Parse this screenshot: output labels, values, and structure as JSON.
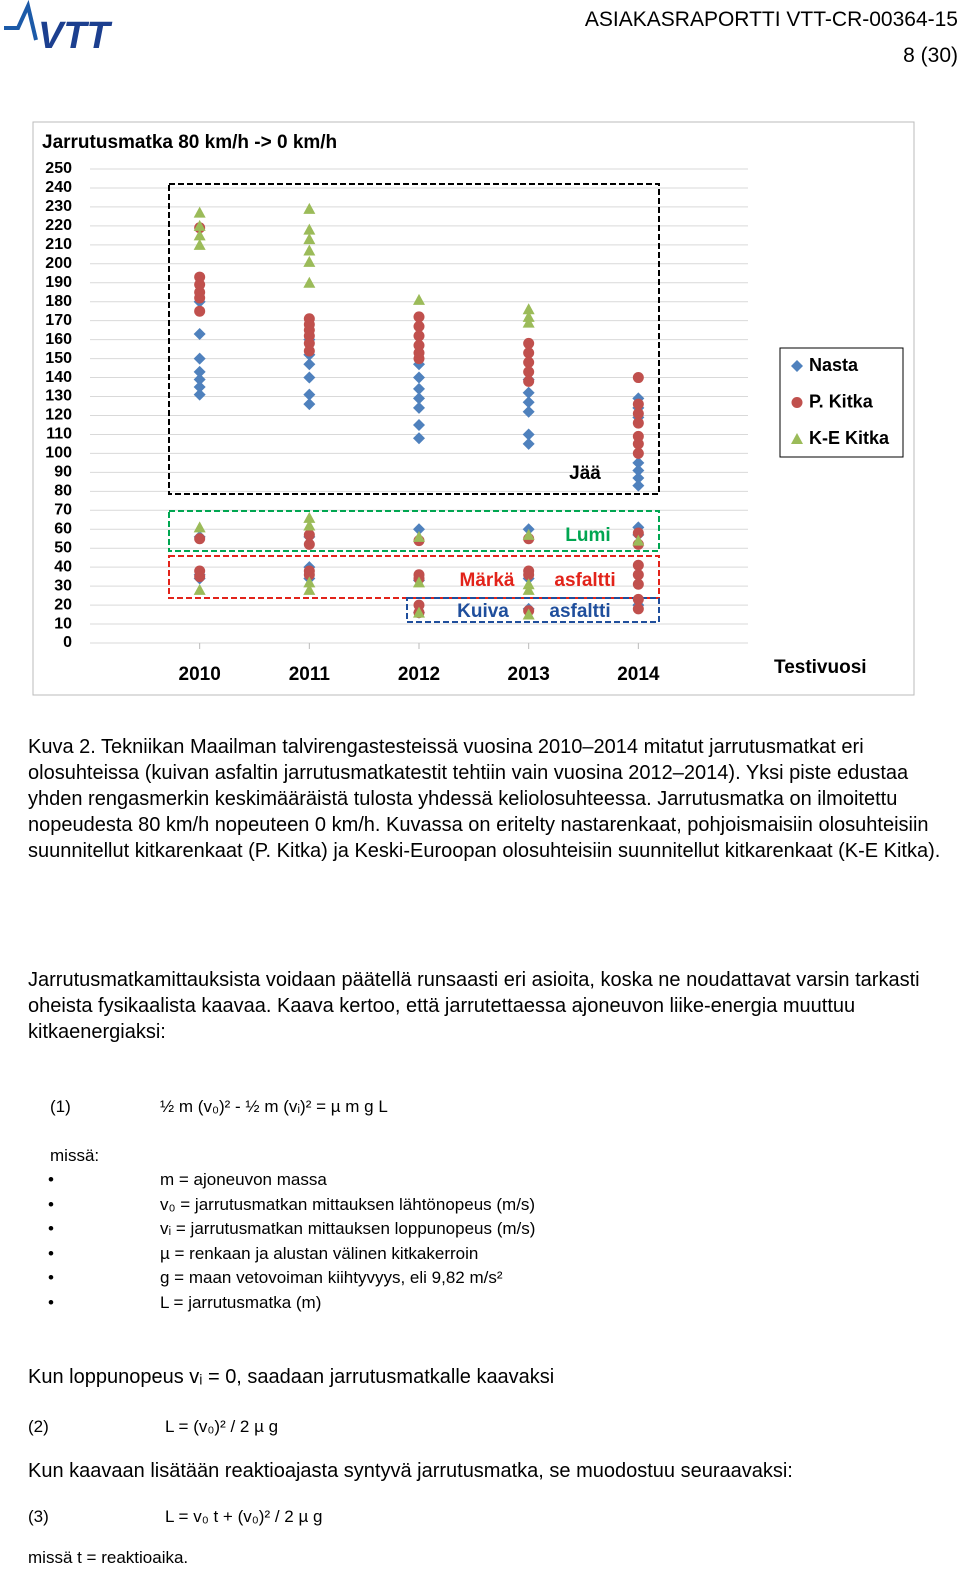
{
  "header": {
    "logo": "VTT",
    "report": "ASIAKASRAPORTTI VTT-CR-00364-15",
    "page": "8 (30)"
  },
  "chart_data": {
    "type": "scatter",
    "title": "Jarrutusmatka 80 km/h -> 0 km/h",
    "x_label": "Testivuosi",
    "xlim": [
      2009,
      2015
    ],
    "xticks": [
      2010,
      2011,
      2012,
      2013,
      2014
    ],
    "ylim": [
      0,
      250
    ],
    "yticks": [
      0,
      10,
      20,
      30,
      40,
      50,
      60,
      70,
      80,
      90,
      100,
      110,
      120,
      130,
      140,
      150,
      160,
      170,
      180,
      190,
      200,
      210,
      220,
      230,
      240,
      250
    ],
    "grid": true,
    "legend": "right",
    "annotations": [
      "Jää",
      "Lumi",
      "Märkä",
      "asfaltti",
      "Kuiva",
      "asfaltti"
    ],
    "series": [
      {
        "name": "Nasta",
        "color": "#4f81bd",
        "marker": "diamond",
        "x": [
          2010,
          2010,
          2010,
          2010,
          2010,
          2010,
          2010,
          2010,
          2010,
          2010,
          2011,
          2011,
          2011,
          2011,
          2011,
          2011,
          2011,
          2011,
          2011,
          2012,
          2012,
          2012,
          2012,
          2012,
          2012,
          2012,
          2012,
          2012,
          2012,
          2013,
          2013,
          2013,
          2013,
          2013,
          2013,
          2013,
          2013,
          2013,
          2014,
          2014,
          2014,
          2014,
          2014,
          2014,
          2014,
          2014,
          2014,
          2014
        ],
        "values": [
          180,
          163,
          150,
          143,
          139,
          135,
          131,
          56,
          36,
          34,
          160,
          152,
          147,
          140,
          131,
          126,
          56,
          40,
          34,
          147,
          140,
          134,
          129,
          124,
          115,
          108,
          60,
          33,
          16,
          139,
          132,
          127,
          122,
          110,
          105,
          60,
          34,
          18,
          129,
          124,
          119,
          95,
          91,
          87,
          83,
          61,
          57,
          20
        ]
      },
      {
        "name": "P. Kitka",
        "color": "#c0504d",
        "marker": "circle",
        "x": [
          2010,
          2010,
          2010,
          2010,
          2010,
          2010,
          2010,
          2010,
          2010,
          2011,
          2011,
          2011,
          2011,
          2011,
          2011,
          2011,
          2011,
          2011,
          2011,
          2012,
          2012,
          2012,
          2012,
          2012,
          2012,
          2012,
          2012,
          2012,
          2012,
          2012,
          2013,
          2013,
          2013,
          2013,
          2013,
          2013,
          2013,
          2013,
          2013,
          2014,
          2014,
          2014,
          2014,
          2014,
          2014,
          2014,
          2014,
          2014,
          2014,
          2014,
          2014,
          2014,
          2014
        ],
        "values": [
          219,
          193,
          189,
          185,
          182,
          175,
          55,
          38,
          35,
          171,
          168,
          165,
          162,
          158,
          154,
          57,
          52,
          38,
          36,
          172,
          167,
          162,
          157,
          153,
          150,
          54,
          36,
          34,
          20,
          16,
          158,
          153,
          148,
          143,
          138,
          55,
          38,
          36,
          17,
          140,
          126,
          121,
          116,
          109,
          105,
          100,
          58,
          52,
          41,
          36,
          31,
          23,
          18
        ]
      },
      {
        "name": "K-E Kitka",
        "color": "#9bbb59",
        "marker": "triangle",
        "x": [
          2010,
          2010,
          2010,
          2010,
          2010,
          2010,
          2011,
          2011,
          2011,
          2011,
          2011,
          2011,
          2011,
          2011,
          2011,
          2011,
          2012,
          2012,
          2012,
          2012,
          2013,
          2013,
          2013,
          2013,
          2013,
          2013,
          2013,
          2014
        ],
        "values": [
          227,
          220,
          215,
          210,
          61,
          28,
          229,
          218,
          213,
          207,
          201,
          190,
          66,
          62,
          32,
          28,
          181,
          56,
          32,
          16,
          176,
          172,
          169,
          57,
          31,
          28,
          15,
          54
        ]
      }
    ]
  },
  "caption": "Kuva 2. Tekniikan Maailman talvirengastesteissä vuosina 2010–2014 mitatut jarrutusmatkat eri olosuhteissa (kuivan asfaltin jarrutusmatkatestit tehtiin vain vuosina 2012–2014). Yksi piste edustaa yhden rengasmerkin keskimääräistä tulosta yhdessä keliolosuhteessa. Jarrutusmatka on ilmoitettu nopeudesta 80 km/h nopeuteen 0 km/h. Kuvassa on eritelty nastarenkaat, pohjoismaisiin olosuhteisiin suunnitellut kitkarenkaat (P. Kitka) ja Keski-Euroopan olosuhteisiin suunnitellut kitkarenkaat (K-E Kitka).",
  "paragraph": "Jarrutusmatkamittauksista voidaan päätellä runsaasti eri asioita, koska ne noudattavat varsin tarkasti oheista fysikaalista kaavaa. Kaava kertoo, että jarrutettaessa ajoneuvon liike-energia muuttuu kitkaenergiaksi:",
  "formula1": {
    "number": "(1)",
    "text": "½ m (v₀)² - ½ m (vᵢ)² = µ m g L"
  },
  "where": "missä:",
  "bullets": [
    "m = ajoneuvon massa",
    "v₀ = jarrutusmatkan mittauksen lähtönopeus (m/s)",
    "vᵢ = jarrutusmatkan mittauksen loppunopeus (m/s)",
    "µ = renkaan ja alustan välinen kitkakerroin",
    "g = maan vetovoiman kiihtyvyys, eli 9,82 m/s²",
    "L = jarrutusmatka (m)"
  ],
  "text2": "Kun loppunopeus vᵢ = 0, saadaan jarrutusmatkalle kaavaksi",
  "formula2": {
    "number": "(2)",
    "text": "L = (v₀)² / 2 µ g"
  },
  "text3": "Kun kaavaan lisätään reaktioajasta syntyvä jarrutusmatka, se muodostuu seuraavaksi:",
  "formula3": {
    "number": "(3)",
    "text": "L = v₀ t + (v₀)² / 2 µ g"
  },
  "text4": "missä t = reaktioaika."
}
